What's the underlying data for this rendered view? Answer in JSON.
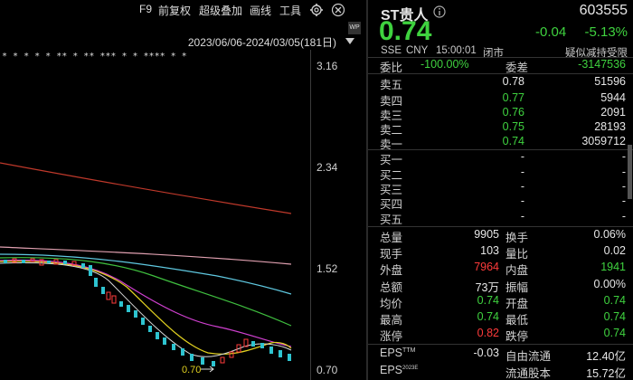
{
  "toolbar": {
    "f9": "F9",
    "adjust": "前复权",
    "overlay": "超级叠加",
    "draw": "画线",
    "tools": "工具"
  },
  "chart": {
    "range": "2023/06/06-2024/03/05(181日)",
    "price_ticks": [
      "3.16",
      "2.34",
      "1.52",
      "0.70"
    ],
    "low_marker": "0.70",
    "star_row": "*  *  *  *              *              **  *    **    ***  *    *    **** *    *",
    "colors": {
      "ma_red": "#c0392b",
      "ma_pink": "#e0a0b0",
      "ma_cyan": "#5fc8e0",
      "ma_green": "#3fbf3f",
      "ma_magenta": "#d040d0",
      "ma_yellow": "#e0d020",
      "candle_up": "#ff3b3b",
      "candle_down": "#2ec4d0"
    }
  },
  "quote": {
    "name": "ST贵人",
    "code": "603555",
    "price": "0.74",
    "change": "-0.04",
    "change_pct": "-5.13%",
    "market": "SSE",
    "currency": "CNY",
    "time": "15:00:01",
    "status": "闭市",
    "note": "疑似减持受限",
    "commission_ratio_label": "委比",
    "commission_ratio": "-100.00%",
    "commission_diff_label": "委差",
    "commission_diff": "-3147536",
    "asks": [
      {
        "label": "卖五",
        "price": "0.78",
        "vol": "51596",
        "color": "white"
      },
      {
        "label": "卖四",
        "price": "0.77",
        "vol": "5944",
        "color": "green"
      },
      {
        "label": "卖三",
        "price": "0.76",
        "vol": "2091",
        "color": "green"
      },
      {
        "label": "卖二",
        "price": "0.75",
        "vol": "28193",
        "color": "green"
      },
      {
        "label": "卖一",
        "price": "0.74",
        "vol": "3059712",
        "color": "green"
      }
    ],
    "bids": [
      {
        "label": "买一",
        "price": "-",
        "vol": "-"
      },
      {
        "label": "买二",
        "price": "-",
        "vol": "-"
      },
      {
        "label": "买三",
        "price": "-",
        "vol": "-"
      },
      {
        "label": "买四",
        "price": "-",
        "vol": "-"
      },
      {
        "label": "买五",
        "price": "-",
        "vol": "-"
      }
    ],
    "stats": [
      {
        "l1": "总量",
        "v1": "9905",
        "c1": "white",
        "l2": "换手",
        "v2": "0.06%",
        "c2": "white"
      },
      {
        "l1": "现手",
        "v1": "103",
        "c1": "white",
        "l2": "量比",
        "v2": "0.02",
        "c2": "white"
      },
      {
        "l1": "外盘",
        "v1": "7964",
        "c1": "red",
        "l2": "内盘",
        "v2": "1941",
        "c2": "green"
      },
      {
        "l1": "总额",
        "v1": "73万",
        "c1": "white",
        "l2": "振幅",
        "v2": "0.00%",
        "c2": "white"
      },
      {
        "l1": "均价",
        "v1": "0.74",
        "c1": "green",
        "l2": "开盘",
        "v2": "0.74",
        "c2": "green"
      },
      {
        "l1": "最高",
        "v1": "0.74",
        "c1": "green",
        "l2": "最低",
        "v2": "0.74",
        "c2": "green"
      },
      {
        "l1": "涨停",
        "v1": "0.82",
        "c1": "red",
        "l2": "跌停",
        "v2": "0.74",
        "c2": "green"
      }
    ],
    "eps_label": "EPS",
    "eps_tm": "TTM",
    "eps_ttm": "-0.03",
    "float_label": "自由流通",
    "float_val": "12.40亿",
    "eps2_label": "EPS",
    "eps2_sup": "2023E",
    "shares_label": "流通股本",
    "shares_val": "15.72亿"
  }
}
